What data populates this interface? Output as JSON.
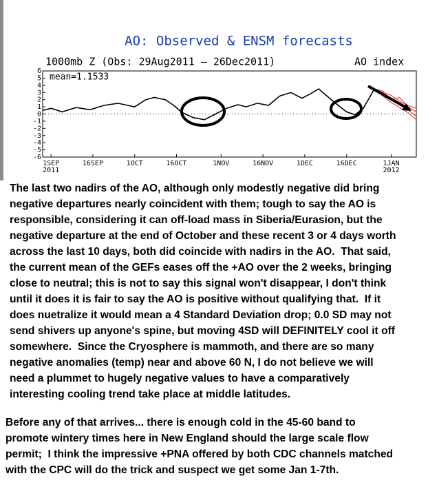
{
  "chart_data": {
    "type": "line",
    "title": "AO: Observed & ENSM forecasts",
    "subtitle": "1000mb Z (Obs: 29Aug2011 — 26Dec2011)",
    "y_label": "AO index",
    "annotation": "mean=1.1533",
    "xlim": [
      "2011-08-29",
      "2012-01-10"
    ],
    "xticks": [
      {
        "value": "2011-09-01",
        "label": "1SEP 2011"
      },
      {
        "value": "2011-09-16",
        "label": "16SEP"
      },
      {
        "value": "2011-10-01",
        "label": "1OCT"
      },
      {
        "value": "2011-10-16",
        "label": "16OCT"
      },
      {
        "value": "2011-11-01",
        "label": "1NOV"
      },
      {
        "value": "2011-11-16",
        "label": "16NOV"
      },
      {
        "value": "2011-12-01",
        "label": "1DEC"
      },
      {
        "value": "2011-12-16",
        "label": "16DEC"
      },
      {
        "value": "2012-01-01",
        "label": "1JAN 2012"
      }
    ],
    "ylim": [
      -6,
      6
    ],
    "yticks": [
      6,
      5,
      4,
      3,
      2,
      1,
      0,
      -1,
      -2,
      -3,
      -4,
      -5,
      -6
    ],
    "zero_line": true,
    "series": [
      {
        "color": "#000000",
        "x": [
          "2011-08-29",
          "2011-09-01",
          "2011-09-05",
          "2011-09-10",
          "2011-09-15",
          "2011-09-20",
          "2011-09-25",
          "2011-10-01",
          "2011-10-05",
          "2011-10-08",
          "2011-10-12",
          "2011-10-15",
          "2011-10-18",
          "2011-10-22",
          "2011-10-26",
          "2011-10-30",
          "2011-11-03",
          "2011-11-07",
          "2011-11-10",
          "2011-11-14",
          "2011-11-18",
          "2011-11-22",
          "2011-11-26",
          "2011-11-30",
          "2011-12-03",
          "2011-12-06",
          "2011-12-09",
          "2011-12-12",
          "2011-12-16",
          "2011-12-19",
          "2011-12-22",
          "2011-12-26"
        ],
        "values": [
          0.5,
          0.8,
          0.3,
          0.9,
          0.6,
          1.2,
          1.5,
          1.0,
          2.0,
          2.3,
          2.0,
          1.2,
          0.2,
          -0.5,
          -0.8,
          0.0,
          0.8,
          1.3,
          1.0,
          1.5,
          1.2,
          2.5,
          3.0,
          2.2,
          2.8,
          3.5,
          2.5,
          1.5,
          0.3,
          -0.1,
          0.8,
          3.5
        ]
      },
      {
        "color": "#ee2222",
        "x": [
          "2011-12-26",
          "2011-12-29",
          "2012-01-01",
          "2012-01-04",
          "2012-01-07",
          "2012-01-10"
        ],
        "values": [
          3.5,
          2.8,
          2.2,
          1.4,
          0.6,
          -0.3
        ]
      },
      {
        "color": "#ee2222",
        "x": [
          "2011-12-26",
          "2011-12-29",
          "2012-01-01",
          "2012-01-04",
          "2012-01-07",
          "2012-01-10"
        ],
        "values": [
          3.5,
          3.0,
          2.6,
          1.8,
          1.2,
          0.8
        ]
      },
      {
        "color": "#ee2222",
        "x": [
          "2011-12-26",
          "2011-12-29",
          "2012-01-01",
          "2012-01-04",
          "2012-01-07",
          "2012-01-10"
        ],
        "values": [
          3.5,
          2.5,
          1.6,
          0.9,
          0.2,
          -0.8
        ]
      },
      {
        "color": "#ee2222",
        "x": [
          "2011-12-26",
          "2011-12-29",
          "2012-01-01",
          "2012-01-04",
          "2012-01-07",
          "2012-01-10"
        ],
        "values": [
          3.5,
          3.2,
          2.0,
          2.3,
          1.0,
          0.3
        ]
      }
    ]
  },
  "paragraphs": [
    [
      "The last two nadirs of the AO, although only modestly negative did bring",
      "negative departures nearly coincident with them; tough to say the AO is",
      "responsible, considering it can off-load mass in Siberia/Eurasion, but the",
      "negative departure at the end of October and these recent 3 or 4 days worth",
      "across the last 10 days, both did coincide with nadirs in the AO.  That said,",
      "the current mean of the GEFs eases off the +AO over the 2 weeks, bringing",
      "close to neutral; this is not to say this signal won't disappear, I don't think",
      "until it does it is fair to say the AO is positive without qualifying that.  If it",
      "does nuetralize it would mean a 4 Standard Deviation drop; 0.0 SD may not",
      "send shivers up anyone's spine, but moving 4SD will DEFINITELY cool it off",
      "somewhere.  Since the Cryosphere is mammoth, and there are so many",
      "negative anomalies (temp) near and above 60 N, I do not believe we will",
      "need a plummet to hugely negative values to have a comparatively",
      "interesting cooling trend take place at middle latitudes."
    ],
    [
      "Before any of that arrives... there is enough cold in the 45-60 band to",
      "promote wintery times here in New England should the large scale flow",
      "permit;  I think the impressive +PNA offered by both CDC channels matched",
      "with the CPC will do the trick and suspect we get some Jan 1-7th."
    ]
  ]
}
